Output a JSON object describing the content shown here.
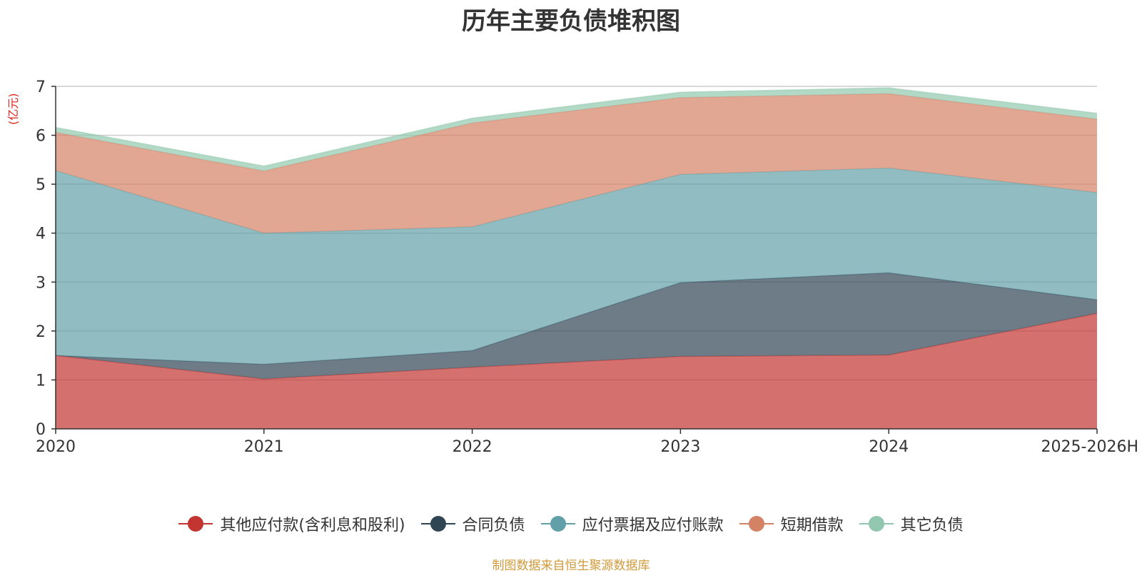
{
  "chart_data": {
    "type": "area",
    "stacked": true,
    "title": "历年主要负债堆积图",
    "ylabel": "(亿元)",
    "xlabel": "",
    "categories": [
      "2020",
      "2021",
      "2022",
      "2023",
      "2024",
      "2025-2026H"
    ],
    "ylim": [
      0,
      7
    ],
    "yticks": [
      0,
      1,
      2,
      3,
      4,
      5,
      6,
      7
    ],
    "grid": true,
    "legend_position": "bottom",
    "series": [
      {
        "name": "其他应付款(含利息和股利)",
        "color": "#c23531",
        "values": [
          1.5,
          1.02,
          1.26,
          1.48,
          1.51,
          2.36
        ]
      },
      {
        "name": "合同负债",
        "color": "#2f4554",
        "values": [
          0.0,
          0.3,
          0.34,
          1.51,
          1.68,
          0.28
        ]
      },
      {
        "name": "应付票据及应付账款",
        "color": "#61a0a8",
        "values": [
          3.78,
          2.68,
          2.53,
          2.21,
          2.14,
          2.19
        ]
      },
      {
        "name": "短期借款",
        "color": "#d48265",
        "values": [
          0.78,
          1.27,
          2.12,
          1.57,
          1.52,
          1.5
        ]
      },
      {
        "name": "其它负债",
        "color": "#91c7ae",
        "values": [
          0.1,
          0.1,
          0.1,
          0.11,
          0.12,
          0.12
        ]
      }
    ],
    "source_note": "制图数据来自恒生聚源数据库"
  }
}
